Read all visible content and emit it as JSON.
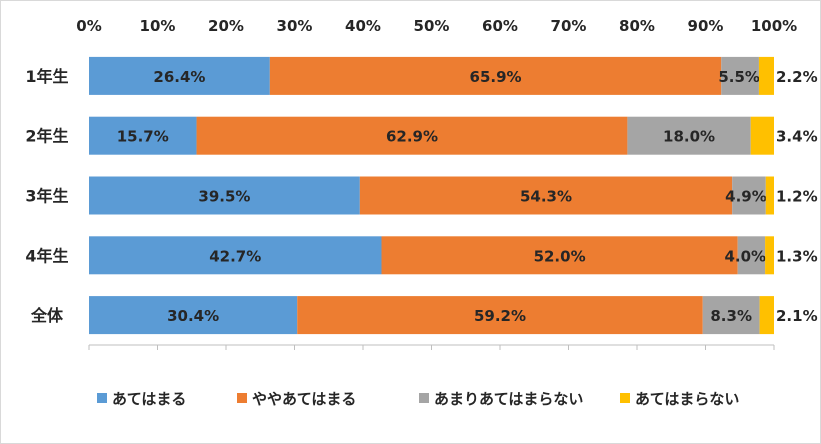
{
  "chart_data": {
    "type": "bar",
    "orientation": "horizontal",
    "stacked": "percent",
    "categories": [
      "1年生",
      "2年生",
      "3年生",
      "4年生",
      "全体"
    ],
    "series": [
      {
        "name": "あてはまる",
        "color": "#5B9BD5",
        "values": [
          26.4,
          15.7,
          39.5,
          42.7,
          30.4
        ]
      },
      {
        "name": "ややあてはまる",
        "color": "#ED7D31",
        "values": [
          65.9,
          62.9,
          54.3,
          52.0,
          59.2
        ]
      },
      {
        "name": "あまりあてはまらない",
        "color": "#A5A5A5",
        "values": [
          5.5,
          18.0,
          4.9,
          4.0,
          8.3
        ]
      },
      {
        "name": "あてはまらない",
        "color": "#FFC000",
        "values": [
          2.2,
          3.4,
          1.2,
          1.3,
          2.1
        ]
      }
    ],
    "xlim": [
      0,
      100
    ],
    "x_ticks": [
      "0%",
      "10%",
      "20%",
      "30%",
      "40%",
      "50%",
      "60%",
      "70%",
      "80%",
      "90%",
      "100%"
    ],
    "axis_position": "top",
    "grid": false,
    "legend_position": "bottom"
  }
}
